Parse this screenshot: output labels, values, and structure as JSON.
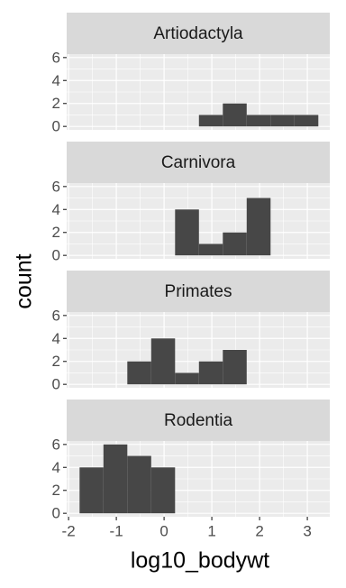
{
  "chart_data": {
    "type": "histogram",
    "x_label": "log10_bodywt",
    "y_label": "count",
    "bins": [
      -1.77,
      -1.27,
      -0.77,
      -0.27,
      0.23,
      0.73,
      1.23,
      1.73,
      2.23,
      2.73,
      3.23
    ],
    "facets": [
      {
        "name": "Artiodactyla",
        "values": [
          0,
          0,
          0,
          0,
          0,
          1,
          2,
          1,
          1,
          1
        ]
      },
      {
        "name": "Carnivora",
        "values": [
          0,
          0,
          0,
          0,
          4,
          1,
          2,
          5,
          0,
          0
        ]
      },
      {
        "name": "Primates",
        "values": [
          0,
          0,
          2,
          4,
          1,
          2,
          3,
          0,
          0,
          0
        ]
      },
      {
        "name": "Rodentia",
        "values": [
          4,
          6,
          5,
          4,
          0,
          0,
          0,
          0,
          0,
          0
        ]
      }
    ],
    "color": "#474747",
    "xlim": [
      -2.04,
      3.47
    ],
    "xticks": [
      -2,
      -1,
      0,
      1,
      2,
      3
    ],
    "ylim": [
      -0.3,
      6.3
    ],
    "yticks": [
      0,
      2,
      4,
      6
    ],
    "grid": true
  }
}
